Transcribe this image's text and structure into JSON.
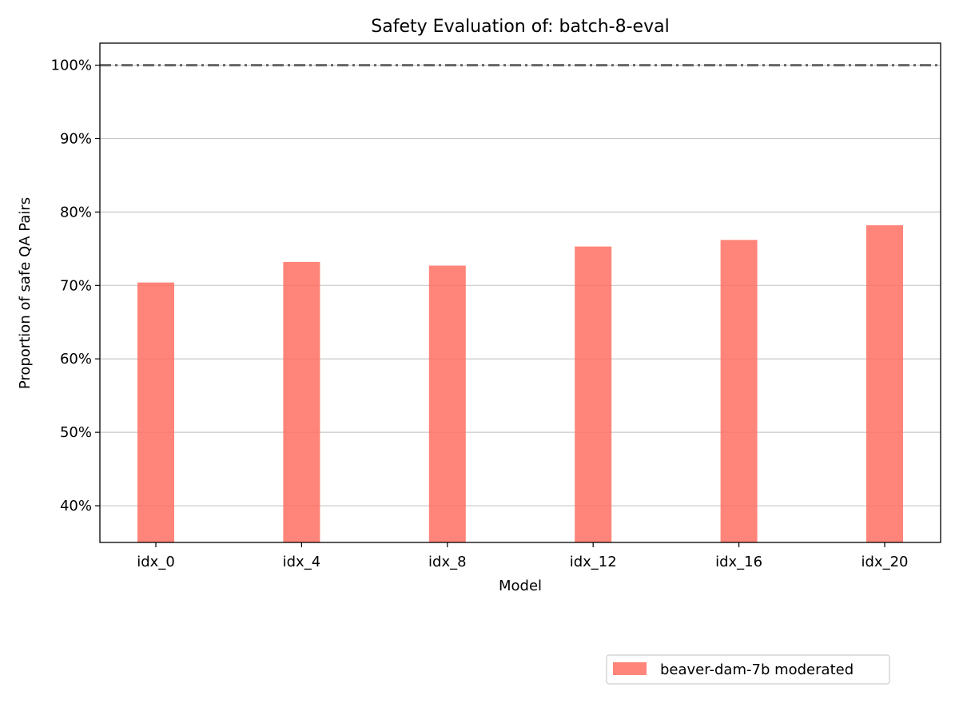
{
  "chart_data": {
    "type": "bar",
    "title": "Safety Evaluation of: batch-8-eval",
    "xlabel": "Model",
    "ylabel": "Proportion of safe QA Pairs",
    "categories": [
      "idx_0",
      "idx_4",
      "idx_8",
      "idx_12",
      "idx_16",
      "idx_20"
    ],
    "series": [
      {
        "name": "beaver-dam-7b moderated",
        "values": [
          70.4,
          73.2,
          72.7,
          75.3,
          76.2,
          78.2
        ],
        "color": "#ff6f61"
      }
    ],
    "ylim": [
      35,
      103
    ],
    "yticks": [
      40,
      50,
      60,
      70,
      80,
      90,
      100
    ],
    "ytick_labels": [
      "40%",
      "50%",
      "60%",
      "70%",
      "80%",
      "90%",
      "100%"
    ],
    "reference_line": {
      "value": 100,
      "style": "dash-dot",
      "color": "#666666"
    },
    "grid": "horizontal",
    "legend_position": "below-right"
  }
}
